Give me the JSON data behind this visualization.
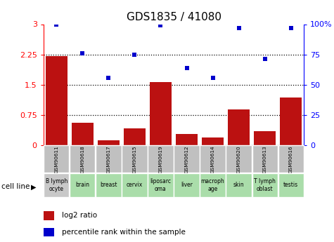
{
  "title": "GDS1835 / 41080",
  "gsm_labels": [
    "GSM90611",
    "GSM90618",
    "GSM90617",
    "GSM90615",
    "GSM90619",
    "GSM90612",
    "GSM90614",
    "GSM90620",
    "GSM90613",
    "GSM90616"
  ],
  "cell_lines": [
    "B lymph\nocyte",
    "brain",
    "breast",
    "cervix",
    "liposarc\noma",
    "liver",
    "macroph\nage",
    "skin",
    "T lymph\noblast",
    "testis"
  ],
  "cell_line_colors": [
    "#c8c8c8",
    "#aaddaa",
    "#aaddaa",
    "#aaddaa",
    "#aaddaa",
    "#aaddaa",
    "#aaddaa",
    "#aaddaa",
    "#aaddaa",
    "#aaddaa"
  ],
  "log2_ratio": [
    2.2,
    0.55,
    0.13,
    0.42,
    1.56,
    0.28,
    0.2,
    0.88,
    0.35,
    1.18
  ],
  "percentile_rank": [
    100.0,
    76.0,
    55.5,
    75.0,
    99.0,
    63.5,
    55.5,
    97.0,
    71.5,
    97.0
  ],
  "left_ylim": [
    0,
    3.0
  ],
  "right_ylim": [
    0,
    100
  ],
  "left_yticks": [
    0,
    0.75,
    1.5,
    2.25,
    3.0
  ],
  "left_yticklabels": [
    "0",
    "0.75",
    "1.5",
    "2.25",
    "3"
  ],
  "right_yticks": [
    0,
    25,
    50,
    75,
    100
  ],
  "right_yticklabels": [
    "0",
    "25",
    "50",
    "75",
    "100%"
  ],
  "bar_color": "#bb1111",
  "scatter_color": "#0000cc",
  "dotted_line_values": [
    0.75,
    1.5,
    2.25
  ],
  "legend_bar_label": "log2 ratio",
  "legend_scatter_label": "percentile rank within the sample",
  "cell_line_label": "cell line",
  "gsm_bg_color": "#c0c0c0",
  "title_fontsize": 11
}
